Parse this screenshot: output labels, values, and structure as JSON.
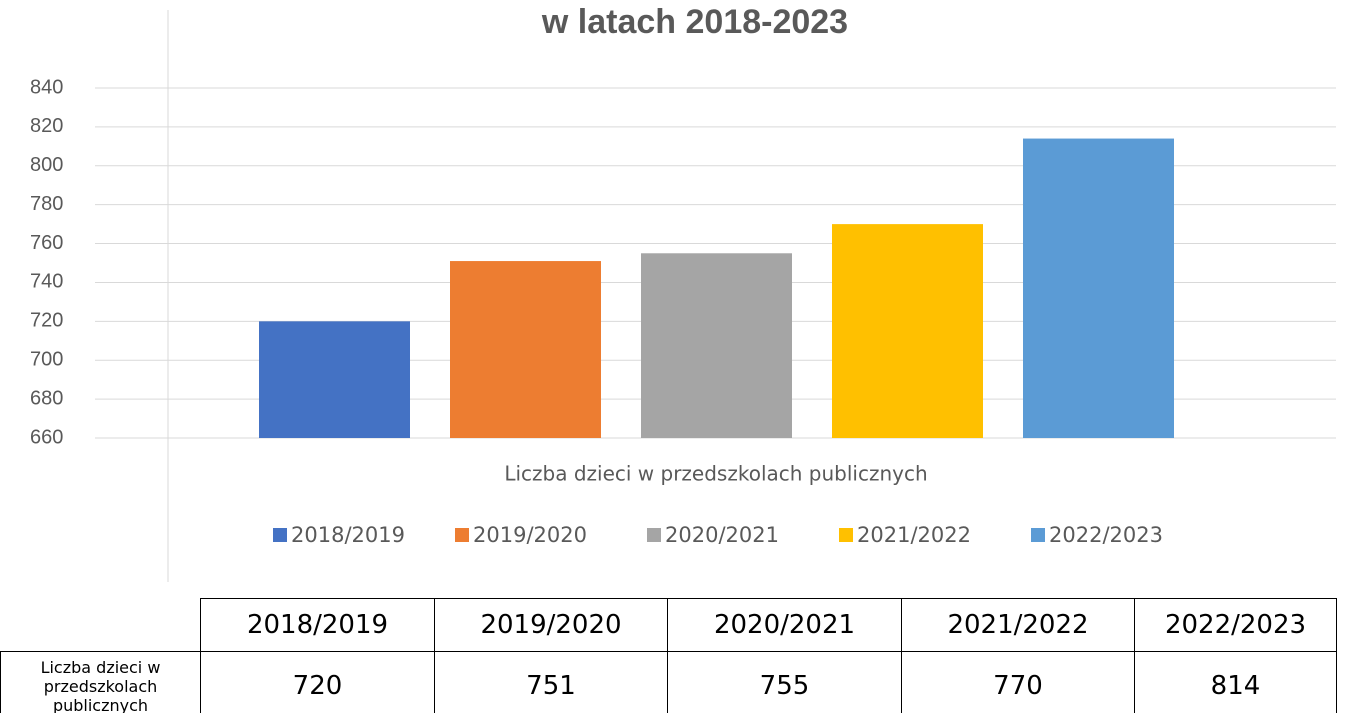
{
  "chart_data": {
    "type": "bar",
    "title": "w latach 2018-2023",
    "categories": [
      "Liczba dzieci w przedszkolach publicznych"
    ],
    "series": [
      {
        "name": "2018/2019",
        "color": "#4472c4",
        "values": [
          720
        ]
      },
      {
        "name": "2019/2020",
        "color": "#ed7d31",
        "values": [
          751
        ]
      },
      {
        "name": "2020/2021",
        "color": "#a5a5a5",
        "values": [
          755
        ]
      },
      {
        "name": "2021/2022",
        "color": "#ffc000",
        "values": [
          770
        ]
      },
      {
        "name": "2022/2023",
        "color": "#5b9bd5",
        "values": [
          814
        ]
      }
    ],
    "ylim": [
      660,
      840
    ],
    "yticks": [
      660,
      680,
      700,
      720,
      740,
      760,
      780,
      800,
      820,
      840
    ],
    "grid": true,
    "legend": "bottom"
  }
}
